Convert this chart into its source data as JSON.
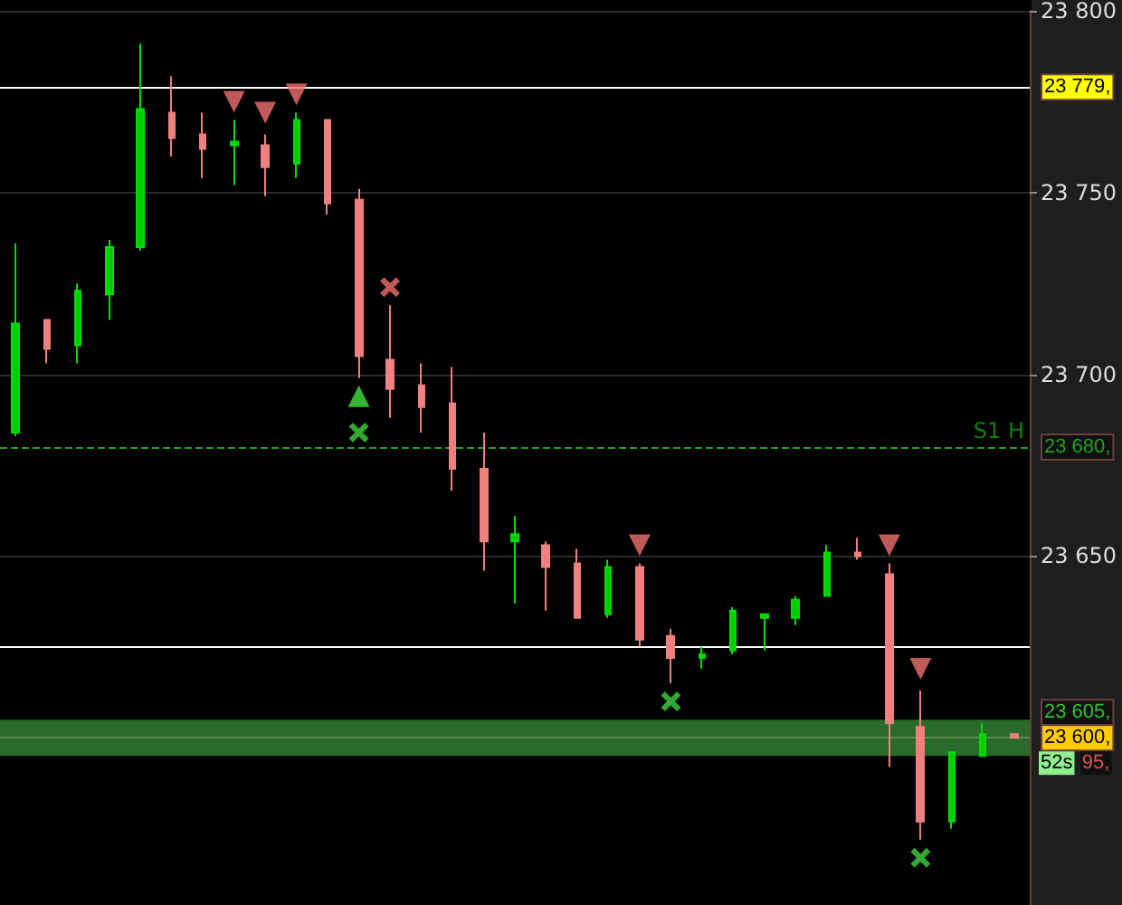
{
  "chart_data": {
    "type": "candlestick",
    "categories": [
      null,
      null,
      null,
      null,
      null,
      null,
      null,
      null,
      null,
      null,
      null,
      null,
      null,
      null,
      null,
      null,
      null,
      null,
      null,
      null,
      null,
      null,
      null,
      null,
      null,
      null,
      null,
      null,
      null,
      null,
      null,
      null,
      null
    ],
    "ohlc": [
      [
        23684,
        23736,
        23683,
        23714
      ],
      [
        23715,
        23715,
        23703,
        23707
      ],
      [
        23708,
        23725,
        23703,
        23723
      ],
      [
        23722,
        23737,
        23715,
        23735
      ],
      [
        23735,
        23791,
        23734,
        23773
      ],
      [
        23772,
        23782,
        23760,
        23765
      ],
      [
        23766,
        23772,
        23754,
        23762
      ],
      [
        23763,
        23770,
        23752,
        23764
      ],
      [
        23763,
        23766,
        23749,
        23757
      ],
      [
        23758,
        23772,
        23754,
        23770
      ],
      [
        23770,
        23770,
        23744,
        23747
      ],
      [
        23748,
        23751,
        23699,
        23705
      ],
      [
        23704,
        23719,
        23688,
        23696
      ],
      [
        23697,
        23703,
        23684,
        23691
      ],
      [
        23692,
        23702,
        23668,
        23674
      ],
      [
        23674,
        23684,
        23646,
        23654
      ],
      [
        23654,
        23661,
        23637,
        23656
      ],
      [
        23653,
        23654,
        23635,
        23647
      ],
      [
        23648,
        23652,
        23633,
        23633
      ],
      [
        23634,
        23649,
        23633,
        23647
      ],
      [
        23647,
        23648,
        23625,
        23627
      ],
      [
        23628,
        23630,
        23615,
        23622
      ],
      [
        23622,
        23625,
        23619,
        23623
      ],
      [
        23624,
        23636,
        23623,
        23635
      ],
      [
        23633,
        23634,
        23624,
        23634
      ],
      [
        23633,
        23639,
        23631,
        23638
      ],
      [
        23639,
        23653,
        23639,
        23651
      ],
      [
        23651,
        23655,
        23649,
        23650
      ],
      [
        23645,
        23648,
        23592,
        23604
      ],
      [
        23603,
        23613,
        23572,
        23577
      ],
      [
        23577,
        23596,
        23575,
        23596
      ],
      [
        23595,
        23604,
        23595,
        23601
      ],
      [
        23601,
        23601,
        23600,
        23600
      ]
    ],
    "series": [
      {
        "type": "scatter",
        "marker": "triangle",
        "color": "#f07070",
        "values": [
          null,
          null,
          null,
          null,
          null,
          null,
          null,
          23775,
          23772,
          23777,
          null,
          null,
          null,
          null,
          null,
          null,
          null,
          null,
          null,
          null,
          23653,
          null,
          null,
          null,
          null,
          null,
          null,
          null,
          23653,
          23619,
          null,
          null,
          null
        ]
      },
      {
        "type": "scatter",
        "marker": "triangle",
        "color": "#40e040",
        "values": [
          null,
          null,
          null,
          null,
          null,
          null,
          null,
          null,
          null,
          null,
          null,
          23694,
          null,
          null,
          null,
          null,
          null,
          null,
          null,
          null,
          null,
          null,
          null,
          null,
          null,
          null,
          null,
          null,
          null,
          null,
          null,
          null,
          null
        ]
      },
      {
        "type": "scatter",
        "marker": "cross",
        "color": "#f07070",
        "values": [
          null,
          null,
          null,
          null,
          null,
          null,
          null,
          null,
          null,
          null,
          null,
          null,
          23724,
          null,
          null,
          null,
          null,
          null,
          null,
          null,
          null,
          null,
          null,
          null,
          null,
          null,
          null,
          null,
          null,
          null,
          null,
          null,
          null
        ]
      },
      {
        "type": "scatter",
        "marker": "cross",
        "color": "#40d040",
        "values": [
          null,
          null,
          null,
          null,
          null,
          null,
          null,
          null,
          null,
          null,
          null,
          23684,
          null,
          null,
          null,
          null,
          null,
          null,
          null,
          null,
          null,
          23610,
          null,
          null,
          null,
          null,
          null,
          null,
          null,
          23567,
          null,
          null,
          null
        ]
      }
    ],
    "ylim": [
      23554,
      23800
    ],
    "yticks": [
      {
        "value": 23650,
        "label": "23 650"
      },
      {
        "value": 23700,
        "label": "23 700"
      },
      {
        "value": 23750,
        "label": "23 750"
      },
      {
        "value": 23800,
        "label": "23 800"
      }
    ],
    "grid": "y",
    "ref_lines": [
      {
        "axis": "y",
        "value": 23779,
        "label": "23 779,",
        "color": "#ffffff",
        "line_style": "solid"
      },
      {
        "axis": "y",
        "value": 23680,
        "label": "23 680,",
        "color": "#20a020",
        "line_style": "dashed"
      },
      {
        "axis": "y",
        "value": 23625,
        "label": null,
        "color": "#ffffff",
        "line_style": "solid"
      },
      {
        "axis": "y",
        "value": 23600,
        "label": "23 600,",
        "color": "#5a8a5a",
        "line_style": "solid"
      }
    ],
    "bands": [
      {
        "axis": "y",
        "from": 23595,
        "to": 23605,
        "label": "23 605,",
        "color": "#2a6a2a"
      }
    ],
    "annotations": [
      "S1 H",
      "52s",
      "95,"
    ]
  }
}
